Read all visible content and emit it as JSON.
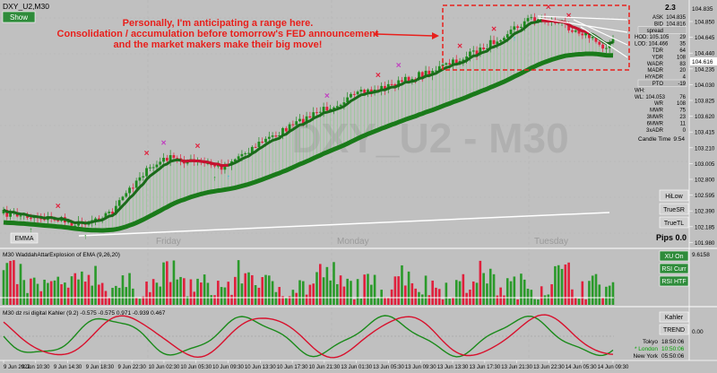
{
  "header": {
    "symbol_label": "DXY_U2,M30",
    "show_button": "Show",
    "watermark": "DXY_U2 - M30"
  },
  "annotation": {
    "lines": [
      "Personally, I'm anticipating a range here.",
      "Consolidation / accumulation before tomorrow's FED announcement",
      "and the market makers make their big move!"
    ],
    "color": "#e8201c"
  },
  "price_panel": {
    "ymin": 101.835,
    "ymax": 105.105,
    "price_ticks": [
      "104.850",
      "104.645",
      "104.440",
      "104.235",
      "104.030",
      "103.825",
      "103.620",
      "103.415",
      "103.210",
      "103.005",
      "102.800",
      "102.595",
      "102.390",
      "102.185",
      "101.980"
    ],
    "current_price": "104.616",
    "ask_price": "104.835",
    "day_labels": [
      "Friday",
      "Monday",
      "Tuesday"
    ],
    "buttons": [
      "HiLow",
      "TrueSR",
      "TrueTL"
    ],
    "emma_button": "EMMA",
    "pips_label": "Pips 0.0"
  },
  "info_panel": {
    "top_value": "2.3",
    "rows": [
      {
        "label": "ASK",
        "value": "104.835"
      },
      {
        "label": "BID",
        "value": "104.816"
      },
      {
        "label": "spread",
        "value": ""
      },
      {
        "label": "HOD: 105.105",
        "value": "29"
      },
      {
        "label": "LOD: 104.466",
        "value": "35"
      },
      {
        "label": "TDR",
        "value": "64"
      },
      {
        "label": "YDR",
        "value": "108"
      },
      {
        "label": "WADR",
        "value": "83"
      },
      {
        "label": "MADR",
        "value": "20"
      },
      {
        "label": "HYADR",
        "value": "4"
      },
      {
        "label": "PTO",
        "value": "-19"
      },
      {
        "label": "WH:",
        "value": ""
      },
      {
        "label": "WL: 104.053",
        "value": "76"
      },
      {
        "label": "WR",
        "value": "108"
      },
      {
        "label": "MWR",
        "value": "75"
      },
      {
        "label": "3MWR",
        "value": "23"
      },
      {
        "label": "6MWR",
        "value": "11"
      },
      {
        "label": "3xADR",
        "value": "0"
      }
    ],
    "candle_time_label": "Candle Time",
    "candle_time_value": "9:54"
  },
  "waddah_panel": {
    "title": "M30 WaddahAttarExplosion of EMA (9,26,20)",
    "top_value": "9.6158",
    "buttons": [
      "XU On",
      "RSI Curr",
      "RSI HTF"
    ]
  },
  "rsi_panel": {
    "title": "M30  dz rsi digital Kahler (9.2) -0.575 -0.575 0.971 -0.939 0.467",
    "scale_value": "0.00",
    "buttons": [
      "Kahler",
      "TREND"
    ],
    "clocks": [
      {
        "city": "Tokyo",
        "time": "18:50:06",
        "color": "#000000"
      },
      {
        "city": "* London",
        "time": "10:50:06",
        "color": "#00a000"
      },
      {
        "city": "New York",
        "time": "05:50:06",
        "color": "#000000"
      }
    ]
  },
  "time_axis": [
    "9 Jun 2022",
    "9 Jun 10:30",
    "9 Jun 14:30",
    "9 Jun 18:30",
    "9 Jun 22:30",
    "10 Jun 02:30",
    "10 Jun 05:30",
    "10 Jun 09:30",
    "10 Jun 13:30",
    "10 Jun 17:30",
    "10 Jun 21:30",
    "13 Jun 01:30",
    "13 Jun 05:30",
    "13 Jun 09:30",
    "13 Jun 13:30",
    "13 Jun 17:30",
    "13 Jun 21:30",
    "13 Jun 22:30",
    "14 Jun 05:30",
    "14 Jun 09:30"
  ],
  "colors": {
    "bull_candle": "#1d8a1d",
    "bear_candle": "#e0203c",
    "ema_line": "#1a7a1a",
    "background": "#c0c0c0"
  }
}
